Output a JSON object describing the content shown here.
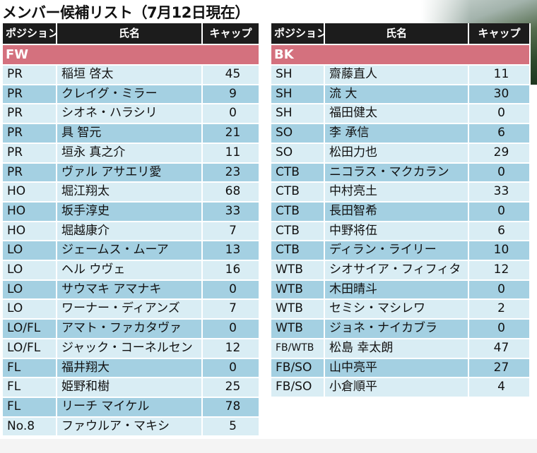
{
  "title": "メンバー候補リスト（7月12日現在）",
  "headers": {
    "position": "ポジション",
    "name": "氏名",
    "caps": "キャップ"
  },
  "fw": {
    "label": "FW",
    "rows": [
      {
        "pos": "PR",
        "name": "稲垣 啓太",
        "caps": "45"
      },
      {
        "pos": "PR",
        "name": "クレイグ・ミラー",
        "caps": "9"
      },
      {
        "pos": "PR",
        "name": "シオネ・ハラシリ",
        "caps": "0"
      },
      {
        "pos": "PR",
        "name": "具 智元",
        "caps": "21"
      },
      {
        "pos": "PR",
        "name": "垣永 真之介",
        "caps": "11"
      },
      {
        "pos": "PR",
        "name": "ヴァル アサエリ愛",
        "caps": "23"
      },
      {
        "pos": "HO",
        "name": "堀江翔太",
        "caps": "68"
      },
      {
        "pos": "HO",
        "name": "坂手淳史",
        "caps": "33"
      },
      {
        "pos": "HO",
        "name": "堀越康介",
        "caps": "7"
      },
      {
        "pos": "LO",
        "name": "ジェームス・ムーア",
        "caps": "13"
      },
      {
        "pos": "LO",
        "name": "ヘル ウヴェ",
        "caps": "16"
      },
      {
        "pos": "LO",
        "name": "サウマキ アマナキ",
        "caps": "0"
      },
      {
        "pos": "LO",
        "name": "ワーナー・ディアンズ",
        "caps": "7"
      },
      {
        "pos": "LO/FL",
        "name": "アマト・ファカタヴァ",
        "caps": "0"
      },
      {
        "pos": "LO/FL",
        "name": "ジャック・コーネルセン",
        "caps": "12"
      },
      {
        "pos": "FL",
        "name": "福井翔大",
        "caps": "0"
      },
      {
        "pos": "FL",
        "name": "姫野和樹",
        "caps": "25"
      },
      {
        "pos": "FL",
        "name": "リーチ マイケル",
        "caps": "78"
      },
      {
        "pos": "No.8",
        "name": "ファウルア・マキシ",
        "caps": "5"
      }
    ]
  },
  "bk": {
    "label": "BK",
    "rows": [
      {
        "pos": "SH",
        "name": "齋藤直人",
        "caps": "11"
      },
      {
        "pos": "SH",
        "name": "流 大",
        "caps": "30"
      },
      {
        "pos": "SH",
        "name": "福田健太",
        "caps": "0"
      },
      {
        "pos": "SO",
        "name": "李 承信",
        "caps": "6"
      },
      {
        "pos": "SO",
        "name": "松田力也",
        "caps": "29"
      },
      {
        "pos": "CTB",
        "name": "ニコラス・マクカラン",
        "caps": "0"
      },
      {
        "pos": "CTB",
        "name": "中村亮土",
        "caps": "33"
      },
      {
        "pos": "CTB",
        "name": "長田智希",
        "caps": "0"
      },
      {
        "pos": "CTB",
        "name": "中野将伍",
        "caps": "6"
      },
      {
        "pos": "CTB",
        "name": "ディラン・ライリー",
        "caps": "10"
      },
      {
        "pos": "WTB",
        "name": "シオサイア・フィフィタ",
        "caps": "12"
      },
      {
        "pos": "WTB",
        "name": "木田晴斗",
        "caps": "0"
      },
      {
        "pos": "WTB",
        "name": "セミシ・マシレワ",
        "caps": "2"
      },
      {
        "pos": "WTB",
        "name": "ジョネ・ナイカブラ",
        "caps": "0"
      },
      {
        "pos": "FB/WTB",
        "name": "松島 幸太朗",
        "caps": "47"
      },
      {
        "pos": "FB/SO",
        "name": "山中亮平",
        "caps": "27"
      },
      {
        "pos": "FB/SO",
        "name": "小倉順平",
        "caps": "4"
      }
    ]
  }
}
